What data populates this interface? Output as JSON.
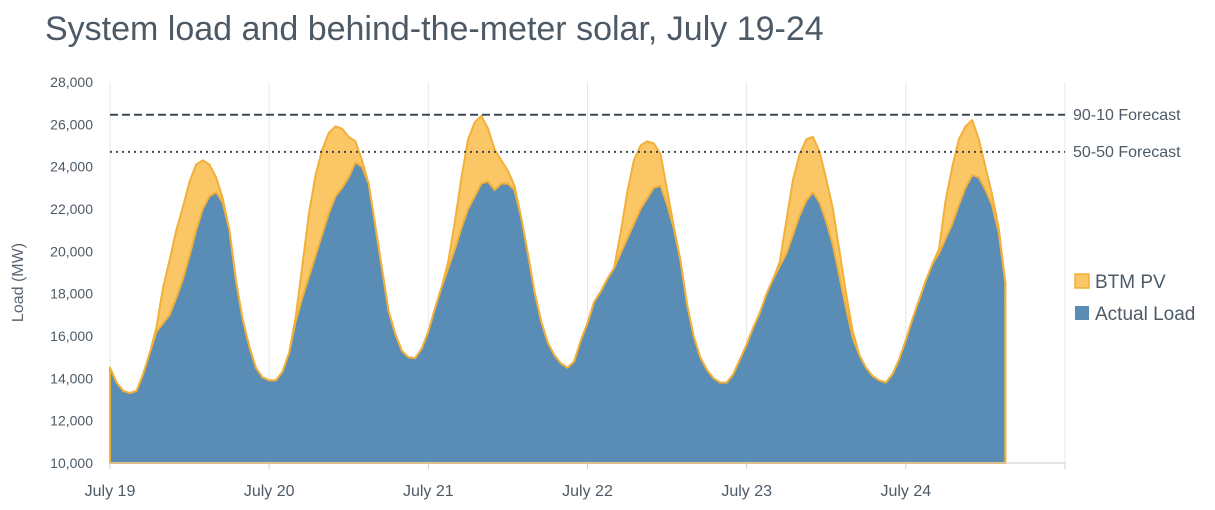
{
  "title": "System load and behind-the-meter solar, July 19-24",
  "chart_data": {
    "type": "area",
    "title": "System load and behind-the-meter solar, July 19-24",
    "xlabel": "",
    "ylabel": "Load (MW)",
    "ylim": [
      10000,
      28000
    ],
    "yticks": [
      "10,000",
      "12,000",
      "14,000",
      "16,000",
      "18,000",
      "20,000",
      "22,000",
      "24,000",
      "26,000",
      "28,000"
    ],
    "xtick_labels": [
      "July 19",
      "July 20",
      "July 21",
      "July 22",
      "July 23",
      "July 24"
    ],
    "x_range_days": [
      0,
      6
    ],
    "grid": "vertical",
    "legend_position": "right",
    "reference_lines": [
      {
        "name": "90-10 Forecast",
        "value": 26450,
        "style": "dashed",
        "color": "#3d4a57"
      },
      {
        "name": "50-50 Forecast",
        "value": 24700,
        "style": "dotted",
        "color": "#3d4a57"
      }
    ],
    "series": [
      {
        "name": "Actual Load",
        "color": "#5a8db5",
        "hours": [
          0,
          1,
          2,
          3,
          4,
          5,
          6,
          7,
          8,
          9,
          10,
          11,
          12,
          13,
          14,
          15,
          16,
          17,
          18,
          19,
          20,
          21,
          22,
          23
        ],
        "days": [
          [
            14500,
            13800,
            13400,
            13300,
            13400,
            14200,
            15200,
            16200,
            16600,
            17000,
            17800,
            18700,
            19800,
            21000,
            22000,
            22600,
            22800,
            22300,
            21000,
            18600,
            16800,
            15500,
            14500,
            14050
          ],
          [
            13900,
            13900,
            14300,
            15200,
            16700,
            17800,
            18800,
            19800,
            20800,
            21800,
            22600,
            23000,
            23500,
            24200,
            24000,
            23200,
            21200,
            19200,
            17200,
            16100,
            15300,
            15000,
            14950,
            15400
          ],
          [
            16200,
            17300,
            18300,
            19200,
            20100,
            21100,
            22000,
            22600,
            23200,
            23300,
            22900,
            23200,
            23200,
            22900,
            21600,
            19900,
            18100,
            16700,
            15700,
            15100,
            14700,
            14500,
            14800,
            15800
          ],
          [
            16600,
            17600,
            18100,
            18700,
            19200,
            19900,
            20600,
            21300,
            22000,
            22500,
            23000,
            23100,
            22200,
            21100,
            19600,
            17500,
            16000,
            15000,
            14400,
            14000,
            13800,
            13800,
            14200,
            14900
          ],
          [
            15600,
            16400,
            17100,
            18000,
            18700,
            19300,
            19900,
            20800,
            21700,
            22400,
            22800,
            22300,
            21400,
            20300,
            18800,
            17300,
            15900,
            15100,
            14500,
            14100,
            13900,
            13800,
            14200,
            14900
          ],
          [
            15800,
            16800,
            17700,
            18600,
            19400,
            19900,
            20600,
            21300,
            22200,
            23000,
            23600,
            23500,
            22900,
            22200,
            20900,
            18500
          ]
        ]
      },
      {
        "name": "BTM PV",
        "color": "#fbc766",
        "hours": [
          0,
          1,
          2,
          3,
          4,
          5,
          6,
          7,
          8,
          9,
          10,
          11,
          12,
          13,
          14,
          15,
          16,
          17,
          18,
          19,
          20,
          21,
          22,
          23
        ],
        "days": [
          [
            0,
            0,
            0,
            0,
            0,
            0,
            0,
            200,
            1700,
            2600,
            3200,
            3400,
            3500,
            3100,
            2300,
            1500,
            700,
            200,
            0,
            0,
            0,
            0,
            0,
            0
          ],
          [
            0,
            0,
            0,
            0,
            200,
            1500,
            3000,
            3800,
            4000,
            3800,
            3300,
            2800,
            1900,
            1000,
            300,
            0,
            0,
            0,
            0,
            0,
            0,
            0,
            0,
            0
          ],
          [
            0,
            0,
            0,
            300,
            1300,
            2400,
            3300,
            3500,
            3200,
            2500,
            1900,
            1100,
            600,
            200,
            0,
            0,
            0,
            0,
            0,
            0,
            0,
            0,
            0,
            0
          ],
          [
            0,
            0,
            0,
            0,
            0,
            1000,
            2200,
            3000,
            3000,
            2700,
            2100,
            1500,
            700,
            100,
            0,
            0,
            0,
            0,
            0,
            0,
            0,
            0,
            0,
            0
          ],
          [
            0,
            0,
            0,
            0,
            0,
            200,
            1600,
            2600,
            2900,
            2900,
            2600,
            2400,
            2000,
            1700,
            1200,
            700,
            300,
            0,
            0,
            0,
            0,
            0,
            0,
            0
          ],
          [
            0,
            0,
            0,
            0,
            0,
            200,
            1800,
            2700,
            3100,
            2900,
            2600,
            1800,
            1100,
            500,
            200,
            0
          ]
        ]
      }
    ]
  }
}
